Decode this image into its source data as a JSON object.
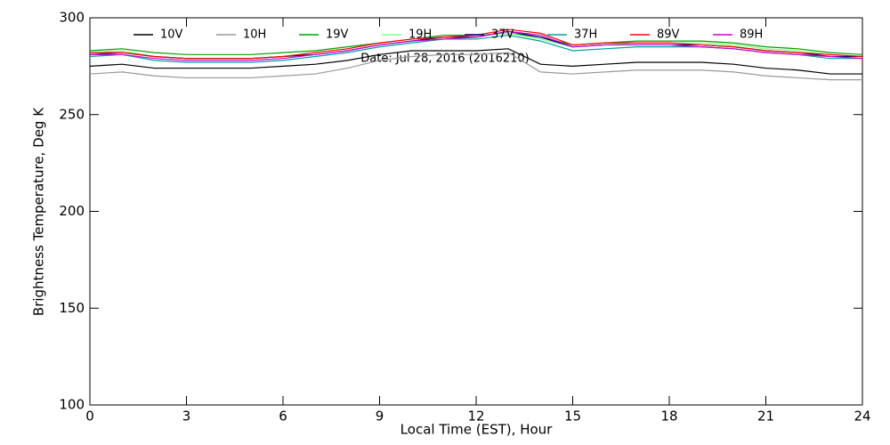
{
  "chart_data": {
    "type": "line",
    "annotation": "Date: Jul 28, 2016 (2016210)",
    "xlabel": "Local Time (EST), Hour",
    "ylabel": "Brightness Temperature, Deg K",
    "x": [
      0,
      1,
      2,
      3,
      4,
      5,
      6,
      7,
      8,
      9,
      10,
      11,
      12,
      13,
      14,
      15,
      16,
      17,
      18,
      19,
      20,
      21,
      22,
      23,
      24
    ],
    "xlim": [
      0,
      24
    ],
    "xticks": [
      0,
      3,
      6,
      9,
      12,
      15,
      18,
      21,
      24
    ],
    "ylim": [
      100,
      300
    ],
    "yticks": [
      100,
      150,
      200,
      250,
      300
    ],
    "legend": "top",
    "series": [
      {
        "name": "10V",
        "color": "#000000",
        "values": [
          275,
          276,
          274,
          274,
          274,
          274,
          275,
          276,
          278,
          281,
          283,
          283,
          283,
          284,
          276,
          275,
          276,
          277,
          277,
          277,
          276,
          274,
          273,
          271,
          271
        ]
      },
      {
        "name": "10H",
        "color": "#999999",
        "values": [
          271,
          272,
          270,
          269,
          269,
          269,
          270,
          271,
          274,
          278,
          280,
          281,
          281,
          282,
          272,
          271,
          272,
          273,
          273,
          273,
          272,
          270,
          269,
          268,
          268
        ]
      },
      {
        "name": "19V",
        "color": "#00a000",
        "values": [
          283,
          284,
          282,
          281,
          281,
          281,
          282,
          283,
          285,
          287,
          289,
          291,
          291,
          292,
          290,
          286,
          287,
          288,
          288,
          288,
          287,
          285,
          284,
          282,
          281
        ]
      },
      {
        "name": "19H",
        "color": "#80ff80",
        "values": [
          282,
          283,
          280,
          279,
          279,
          279,
          280,
          282,
          284,
          287,
          289,
          290,
          291,
          292,
          289,
          285,
          286,
          287,
          287,
          287,
          286,
          284,
          283,
          281,
          280
        ]
      },
      {
        "name": "37V",
        "color": "#000080",
        "values": [
          281,
          282,
          280,
          279,
          279,
          279,
          280,
          281,
          283,
          286,
          288,
          290,
          290,
          293,
          290,
          285,
          286,
          286,
          286,
          286,
          285,
          283,
          282,
          280,
          280
        ]
      },
      {
        "name": "37H",
        "color": "#00a0a0",
        "values": [
          280,
          281,
          278,
          277,
          277,
          277,
          278,
          280,
          282,
          285,
          287,
          289,
          289,
          291,
          288,
          283,
          284,
          285,
          285,
          285,
          284,
          282,
          281,
          279,
          279
        ]
      },
      {
        "name": "89V",
        "color": "#ff0000",
        "values": [
          282,
          282,
          280,
          279,
          279,
          279,
          280,
          282,
          284,
          287,
          289,
          290,
          291,
          294,
          292,
          286,
          287,
          287,
          287,
          286,
          285,
          283,
          282,
          281,
          280
        ]
      },
      {
        "name": "89H",
        "color": "#d000d0",
        "values": [
          281,
          281,
          279,
          278,
          278,
          278,
          279,
          281,
          283,
          286,
          288,
          289,
          290,
          293,
          291,
          285,
          286,
          286,
          286,
          285,
          284,
          282,
          281,
          280,
          279
        ]
      }
    ]
  }
}
